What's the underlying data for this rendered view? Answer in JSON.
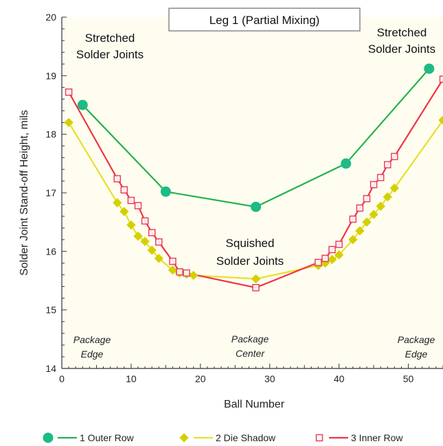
{
  "chart_data": {
    "type": "line",
    "title": "Leg 1 (Partial Mixing)",
    "xlabel": "Ball Number",
    "ylabel": "Solder Joint Stand-off Height, mils",
    "xlim": [
      0,
      55
    ],
    "ylim": [
      14,
      20
    ],
    "xticks": [
      0,
      10,
      20,
      30,
      40,
      50
    ],
    "yticks": [
      14,
      15,
      16,
      17,
      18,
      19,
      20
    ],
    "legend_position": "bottom",
    "annotations": [
      {
        "lines": [
          "Stretched",
          "Solder Joints"
        ],
        "style": "normal",
        "position": "top-left"
      },
      {
        "lines": [
          "Stretched",
          "Solder Joints"
        ],
        "style": "normal",
        "position": "top-right"
      },
      {
        "lines": [
          "Squished",
          "Solder Joints"
        ],
        "style": "normal",
        "position": "center"
      },
      {
        "lines": [
          "Package",
          "Edge"
        ],
        "style": "italic",
        "position": "bottom-left"
      },
      {
        "lines": [
          "Package",
          "Center"
        ],
        "style": "italic",
        "position": "bottom-center"
      },
      {
        "lines": [
          "Package",
          "Edge"
        ],
        "style": "italic",
        "position": "bottom-right"
      }
    ],
    "series": [
      {
        "name": "1 Outer Row",
        "color": "#22b14c",
        "marker_color": "#1dbb85",
        "marker": "circle",
        "points": [
          [
            3,
            18.5
          ],
          [
            15,
            17.02
          ],
          [
            28,
            16.76
          ],
          [
            41,
            17.5
          ],
          [
            53,
            19.12
          ]
        ]
      },
      {
        "name": "2 Die Shadow",
        "color": "#e6e02a",
        "marker_color": "#d4d000",
        "marker": "diamond",
        "points": [
          [
            1,
            18.2
          ],
          [
            8,
            16.83
          ],
          [
            9,
            16.68
          ],
          [
            10,
            16.45
          ],
          [
            11,
            16.26
          ],
          [
            12,
            16.17
          ],
          [
            13,
            16.02
          ],
          [
            14,
            15.88
          ],
          [
            16,
            15.68
          ],
          [
            17,
            15.63
          ],
          [
            18,
            15.61
          ],
          [
            19,
            15.59
          ],
          [
            28,
            15.53
          ],
          [
            37,
            15.76
          ],
          [
            38,
            15.8
          ],
          [
            39,
            15.86
          ],
          [
            40,
            15.94
          ],
          [
            42,
            16.2
          ],
          [
            43,
            16.35
          ],
          [
            44,
            16.5
          ],
          [
            45,
            16.63
          ],
          [
            46,
            16.77
          ],
          [
            47,
            16.93
          ],
          [
            48,
            17.08
          ],
          [
            55,
            18.24
          ]
        ]
      },
      {
        "name": "3 Inner Row",
        "color": "#ee3344",
        "marker_color": "#e8405a",
        "marker": "square",
        "points": [
          [
            1,
            18.72
          ],
          [
            8,
            17.24
          ],
          [
            9,
            17.05
          ],
          [
            10,
            16.87
          ],
          [
            11,
            16.78
          ],
          [
            12,
            16.52
          ],
          [
            13,
            16.32
          ],
          [
            14,
            16.16
          ],
          [
            16,
            15.83
          ],
          [
            17,
            15.65
          ],
          [
            18,
            15.63
          ],
          [
            28,
            15.38
          ],
          [
            37,
            15.81
          ],
          [
            38,
            15.88
          ],
          [
            39,
            16.03
          ],
          [
            40,
            16.12
          ],
          [
            42,
            16.55
          ],
          [
            43,
            16.74
          ],
          [
            44,
            16.9
          ],
          [
            45,
            17.14
          ],
          [
            46,
            17.26
          ],
          [
            47,
            17.48
          ],
          [
            48,
            17.62
          ],
          [
            55,
            18.94
          ]
        ]
      }
    ]
  }
}
